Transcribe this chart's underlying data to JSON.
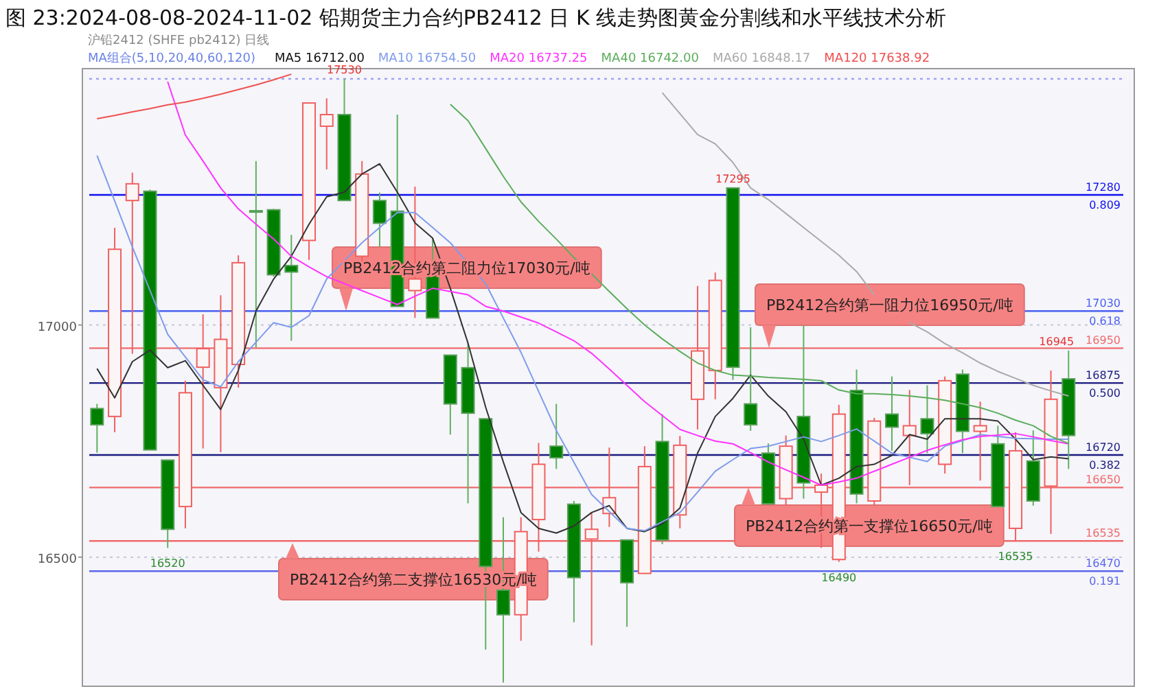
{
  "chart_data": {
    "type": "candlestick",
    "title": "图 23:2024-08-08-2024-11-02 铅期货主力合约PB2412 日 K 线走势图黄金分割线和水平线技术分析",
    "subtitle": "沪铅2412 (SHFE pb2412)  日线",
    "legend_title": "MA组合(5,10,20,40,60,120)",
    "legend": "top",
    "grid": "y",
    "categories": [
      null,
      null,
      null,
      null,
      null,
      null,
      null,
      null,
      null,
      null,
      null,
      null,
      null,
      null,
      null,
      null,
      null,
      null,
      null,
      null,
      null,
      null,
      null,
      null,
      null,
      null,
      null,
      null,
      null,
      null,
      null,
      null,
      null,
      null,
      null,
      null,
      null,
      null,
      null,
      null,
      null,
      null,
      null,
      null,
      null,
      null,
      null,
      null,
      null,
      null,
      null,
      null,
      null,
      null,
      null,
      null
    ],
    "ohlc": [
      [
        16820,
        16830,
        16725,
        16785
      ],
      [
        16803,
        17209,
        16769,
        17163
      ],
      [
        17268,
        17328,
        16938,
        17304
      ],
      [
        17288,
        17291,
        16731,
        16731
      ],
      [
        16709,
        16709,
        16520,
        16560
      ],
      [
        16609,
        16880,
        16562,
        16854
      ],
      [
        16909,
        17023,
        16734,
        16949
      ],
      [
        16865,
        17064,
        16726,
        16969
      ],
      [
        16915,
        17150,
        16865,
        17134
      ],
      [
        17246,
        17353,
        16951,
        17243
      ],
      [
        17248,
        17250,
        17104,
        17108
      ],
      [
        17128,
        17194,
        16966,
        17114
      ],
      [
        17182,
        17478,
        17140,
        17478
      ],
      [
        17428,
        17488,
        17335,
        17453
      ],
      [
        17453,
        17530,
        17268,
        17268
      ],
      [
        17148,
        17353,
        17128,
        17325
      ],
      [
        17268,
        17285,
        17168,
        17219
      ],
      [
        17245,
        17453,
        17040,
        17040
      ],
      [
        17074,
        17298,
        17015,
        17099
      ],
      [
        17110,
        17187,
        17015,
        17015
      ],
      [
        16935,
        16935,
        16764,
        16830
      ],
      [
        16908,
        16961,
        16616,
        16810
      ],
      [
        16798,
        16798,
        16301,
        16480
      ],
      [
        16429,
        16586,
        16230,
        16376
      ],
      [
        16376,
        16586,
        16320,
        16555
      ],
      [
        16581,
        16746,
        16512,
        16700
      ],
      [
        16739,
        16830,
        16690,
        16714
      ],
      [
        16614,
        16621,
        16360,
        16456
      ],
      [
        16539,
        16596,
        16310,
        16560
      ],
      [
        16594,
        16736,
        16565,
        16628
      ],
      [
        16537,
        16537,
        16350,
        16445
      ],
      [
        16465,
        16739,
        16465,
        16695
      ],
      [
        16749,
        16808,
        16528,
        16537
      ],
      [
        16591,
        16761,
        16562,
        16741
      ],
      [
        16840,
        17084,
        16775,
        16944
      ],
      [
        16902,
        17113,
        16840,
        17096
      ],
      [
        17295,
        17295,
        16882,
        16909
      ],
      [
        16830,
        16995,
        16772,
        16785
      ],
      [
        16724,
        16745,
        16612,
        16615
      ],
      [
        16626,
        16762,
        16611,
        16739
      ],
      [
        16803,
        17000,
        16626,
        16660
      ],
      [
        16640,
        16680,
        16520,
        16655
      ],
      [
        16495,
        16828,
        16490,
        16808
      ],
      [
        16859,
        16904,
        16616,
        16636
      ],
      [
        16621,
        16800,
        16612,
        16793
      ],
      [
        16808,
        16889,
        16729,
        16780
      ],
      [
        16762,
        16860,
        16655,
        16783
      ],
      [
        16798,
        16870,
        16724,
        16766
      ],
      [
        16700,
        16889,
        16680,
        16880
      ],
      [
        16894,
        16904,
        16724,
        16771
      ],
      [
        16771,
        16835,
        16665,
        16783
      ],
      [
        16744,
        16783,
        16609,
        16609
      ],
      [
        16562,
        16769,
        16535,
        16729
      ],
      [
        16707,
        16773,
        16611,
        16621
      ],
      [
        16653,
        16902,
        16550,
        16840
      ],
      [
        16884,
        16945,
        16690,
        16762
      ]
    ],
    "series": [
      {
        "name": "MA5 16712.00",
        "type": "line",
        "color": "#333333",
        "values": [
          16906,
          16843,
          16921,
          16946,
          16908,
          16923,
          16870,
          16818,
          16902,
          17030,
          17099,
          17148,
          17217,
          17276,
          17286,
          17325,
          17347,
          17286,
          17220,
          17187,
          17079,
          16961,
          16823,
          16705,
          16596,
          16562,
          16552,
          16567,
          16596,
          16611,
          16562,
          16555,
          16572,
          16606,
          16724,
          16803,
          16842,
          16892,
          16847,
          16813,
          16754,
          16655,
          16670,
          16695,
          16700,
          16719,
          16764,
          16754,
          16798,
          16798,
          16798,
          16793,
          16754,
          16710,
          16716,
          16712
        ]
      },
      {
        "name": "MA10 16754.50",
        "type": "line",
        "color": "#7f9bea",
        "values": [
          17365,
          17267,
          17168,
          17074,
          16980,
          16931,
          16882,
          16867,
          16921,
          16963,
          17005,
          16995,
          17020,
          17099,
          17138,
          17177,
          17210,
          17242,
          17242,
          17210,
          17177,
          17133,
          17089,
          17015,
          16941,
          16857,
          16773,
          16704,
          16635,
          16598,
          16562,
          16557,
          16576,
          16596,
          16640,
          16685,
          16710,
          16734,
          16739,
          16749,
          16759,
          16749,
          16762,
          16776,
          16750,
          16724,
          16715,
          16706,
          16739,
          16751,
          16764,
          16760,
          16756,
          16755,
          16754,
          16754
        ]
      },
      {
        "name": "MA20 16737.25",
        "type": "line",
        "color": "#ff33ff",
        "values": [
          null,
          null,
          null,
          null,
          17524,
          17409,
          17353,
          17295,
          17250,
          17217,
          17185,
          17148,
          17125,
          17104,
          17089,
          17074,
          17059,
          17044,
          17062,
          17079,
          17072,
          17065,
          17040,
          17030,
          17017,
          17004,
          16985,
          16966,
          16939,
          16905,
          16870,
          16835,
          16805,
          16775,
          16762,
          16750,
          16744,
          16725,
          16705,
          16688,
          16672,
          16655,
          16662,
          16670,
          16685,
          16700,
          16715,
          16730,
          16742,
          16753,
          16760,
          16763,
          16766,
          16759,
          16751,
          16744
        ]
      },
      {
        "name": "MA40 16742.00",
        "type": "line",
        "color": "#5cad5c",
        "values": [
          null,
          null,
          null,
          null,
          null,
          null,
          null,
          null,
          null,
          null,
          null,
          null,
          null,
          null,
          null,
          null,
          null,
          null,
          null,
          null,
          17475,
          17440,
          17380,
          17320,
          17265,
          17223,
          17185,
          17145,
          17110,
          17072,
          17035,
          17000,
          16970,
          16943,
          16918,
          16902,
          16892,
          16890,
          16887,
          16885,
          16883,
          16880,
          16860,
          16852,
          16852,
          16850,
          16847,
          16843,
          16838,
          16830,
          16822,
          16810,
          16795,
          16783,
          16760,
          16745
        ]
      },
      {
        "name": "MA60 16848.17",
        "type": "line",
        "color": "#aaaaaa",
        "values": [
          null,
          null,
          null,
          null,
          null,
          null,
          null,
          null,
          null,
          null,
          null,
          null,
          null,
          null,
          null,
          null,
          null,
          null,
          null,
          null,
          null,
          null,
          null,
          null,
          null,
          null,
          null,
          null,
          null,
          null,
          null,
          null,
          17500,
          17455,
          17410,
          17390,
          17350,
          17295,
          17270,
          17240,
          17210,
          17180,
          17150,
          17115,
          17065,
          null,
          17005,
          16985,
          16960,
          16940,
          16918,
          16900,
          16885,
          16870,
          16858,
          16847
        ]
      },
      {
        "name": "MA120 17638.92",
        "type": "line",
        "color": "#f05050",
        "values": [
          17444,
          17451,
          17459,
          17466,
          17474,
          17480,
          17488,
          17497,
          17507,
          17517,
          17528,
          17540,
          null,
          null,
          null,
          null,
          null,
          null,
          null,
          null,
          null,
          null,
          null,
          null,
          null,
          null,
          null,
          null,
          null,
          null,
          null,
          null,
          null,
          null,
          null,
          null,
          null,
          null,
          null,
          null,
          null,
          null,
          null,
          null,
          null,
          null,
          null,
          null,
          null,
          null,
          null,
          null,
          null,
          null,
          null,
          null
        ]
      }
    ],
    "ylim": [
      16222,
      17552
    ],
    "yticks": [
      16500,
      17000
    ],
    "ref_lines": [
      {
        "axis": "y",
        "value": 17530,
        "color": "#9aa0f0",
        "line_style": "dotted"
      },
      {
        "axis": "y",
        "value": 17280,
        "label": "17280\n0.809",
        "color": "#1010ee",
        "line_style": "solid"
      },
      {
        "axis": "y",
        "value": 17030,
        "label": "17030\n0.618",
        "color": "#4a5ff0",
        "line_style": "solid"
      },
      {
        "axis": "y",
        "value": 16950,
        "label": "16950",
        "color": "#f06a6a",
        "line_style": "solid"
      },
      {
        "axis": "y",
        "value": 16875,
        "label": "16875\n0.500",
        "color": "#1a1a80",
        "line_style": "solid"
      },
      {
        "axis": "y",
        "value": 16720,
        "label": "16720\n0.382",
        "color": "#1a1a80",
        "line_style": "solid"
      },
      {
        "axis": "y",
        "value": 16650,
        "label": "16650",
        "color": "#f06a6a",
        "line_style": "solid"
      },
      {
        "axis": "y",
        "value": 16535,
        "label": "16535",
        "color": "#f06a6a",
        "line_style": "solid"
      },
      {
        "axis": "y",
        "value": 16470,
        "label": "16470\n0.191",
        "color": "#5a66e8",
        "line_style": "solid"
      }
    ],
    "annotations": [
      {
        "text": "17530",
        "y": 17530
      },
      {
        "text": "16520",
        "y": 16520
      },
      {
        "text": "17295",
        "y": 17295
      },
      {
        "text": "16490",
        "y": 16490
      },
      {
        "text": "16535",
        "y": 16535
      },
      {
        "text": "16945",
        "y": 16945
      },
      {
        "text": "PB2412合约第二阻力位17030元/吨",
        "y": 17030
      },
      {
        "text": "PB2412合约第一阻力位16950元/吨",
        "y": 16950
      },
      {
        "text": "PB2412合约第一支撑位16650元/吨",
        "y": 16650
      },
      {
        "text": "PB2412合约第二支撑位16530元/吨",
        "y": 16530
      }
    ]
  }
}
